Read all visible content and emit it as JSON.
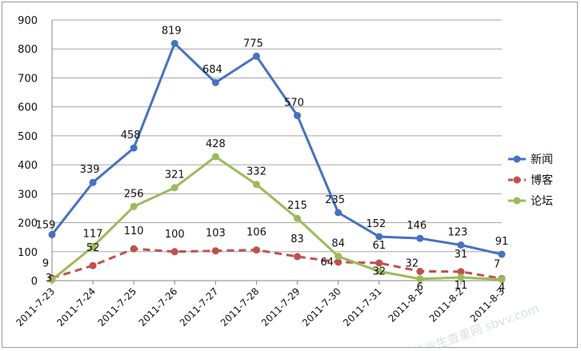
{
  "chart_data": {
    "type": "line",
    "categories": [
      "2011-7-23",
      "2011-7-24",
      "2011-7-25",
      "2011-7-26",
      "2011-7-27",
      "2011-7-28",
      "2011-7-29",
      "2011-7-30",
      "2011-7-31",
      "2011-8-1",
      "2011-8-2",
      "2011-8-3"
    ],
    "ylim": [
      0,
      900
    ],
    "yticks": [
      0,
      100,
      200,
      300,
      400,
      500,
      600,
      700,
      800,
      900
    ],
    "grid": true,
    "legend_position": "right",
    "series": [
      {
        "name": "新闻",
        "color": "#4472c4",
        "dash": false,
        "values": [
          159,
          339,
          458,
          819,
          684,
          775,
          570,
          235,
          152,
          146,
          123,
          91
        ]
      },
      {
        "name": "博客",
        "color": "#c0504d",
        "dash": true,
        "values": [
          9,
          52,
          110,
          100,
          103,
          106,
          83,
          64,
          61,
          32,
          31,
          7
        ]
      },
      {
        "name": "论坛",
        "color": "#9bbb59",
        "dash": false,
        "values": [
          3,
          117,
          256,
          321,
          428,
          332,
          215,
          84,
          32,
          6,
          11,
          4
        ]
      }
    ]
  },
  "watermark": "毕业生查重网  sbvv.com"
}
